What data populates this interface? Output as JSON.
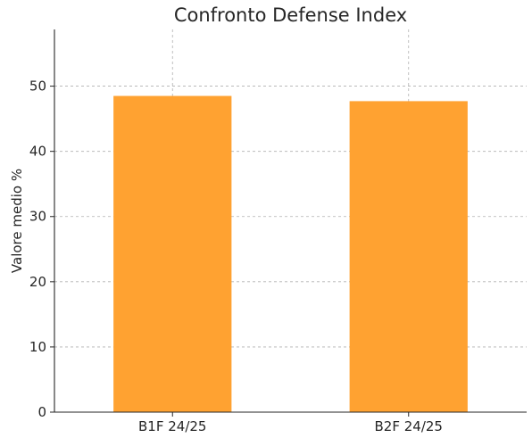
{
  "chart_data": {
    "type": "bar",
    "title": "Confronto Defense Index",
    "xlabel": "",
    "ylabel": "Valore medio %",
    "categories": [
      "B1F 24/25",
      "B2F 24/25"
    ],
    "values": [
      48.5,
      47.7
    ],
    "ylim": [
      0,
      58.7
    ],
    "yticks": [
      0,
      10,
      20,
      30,
      40,
      50
    ],
    "grid": true,
    "legend": "none",
    "bar_color": "#FFA231"
  }
}
